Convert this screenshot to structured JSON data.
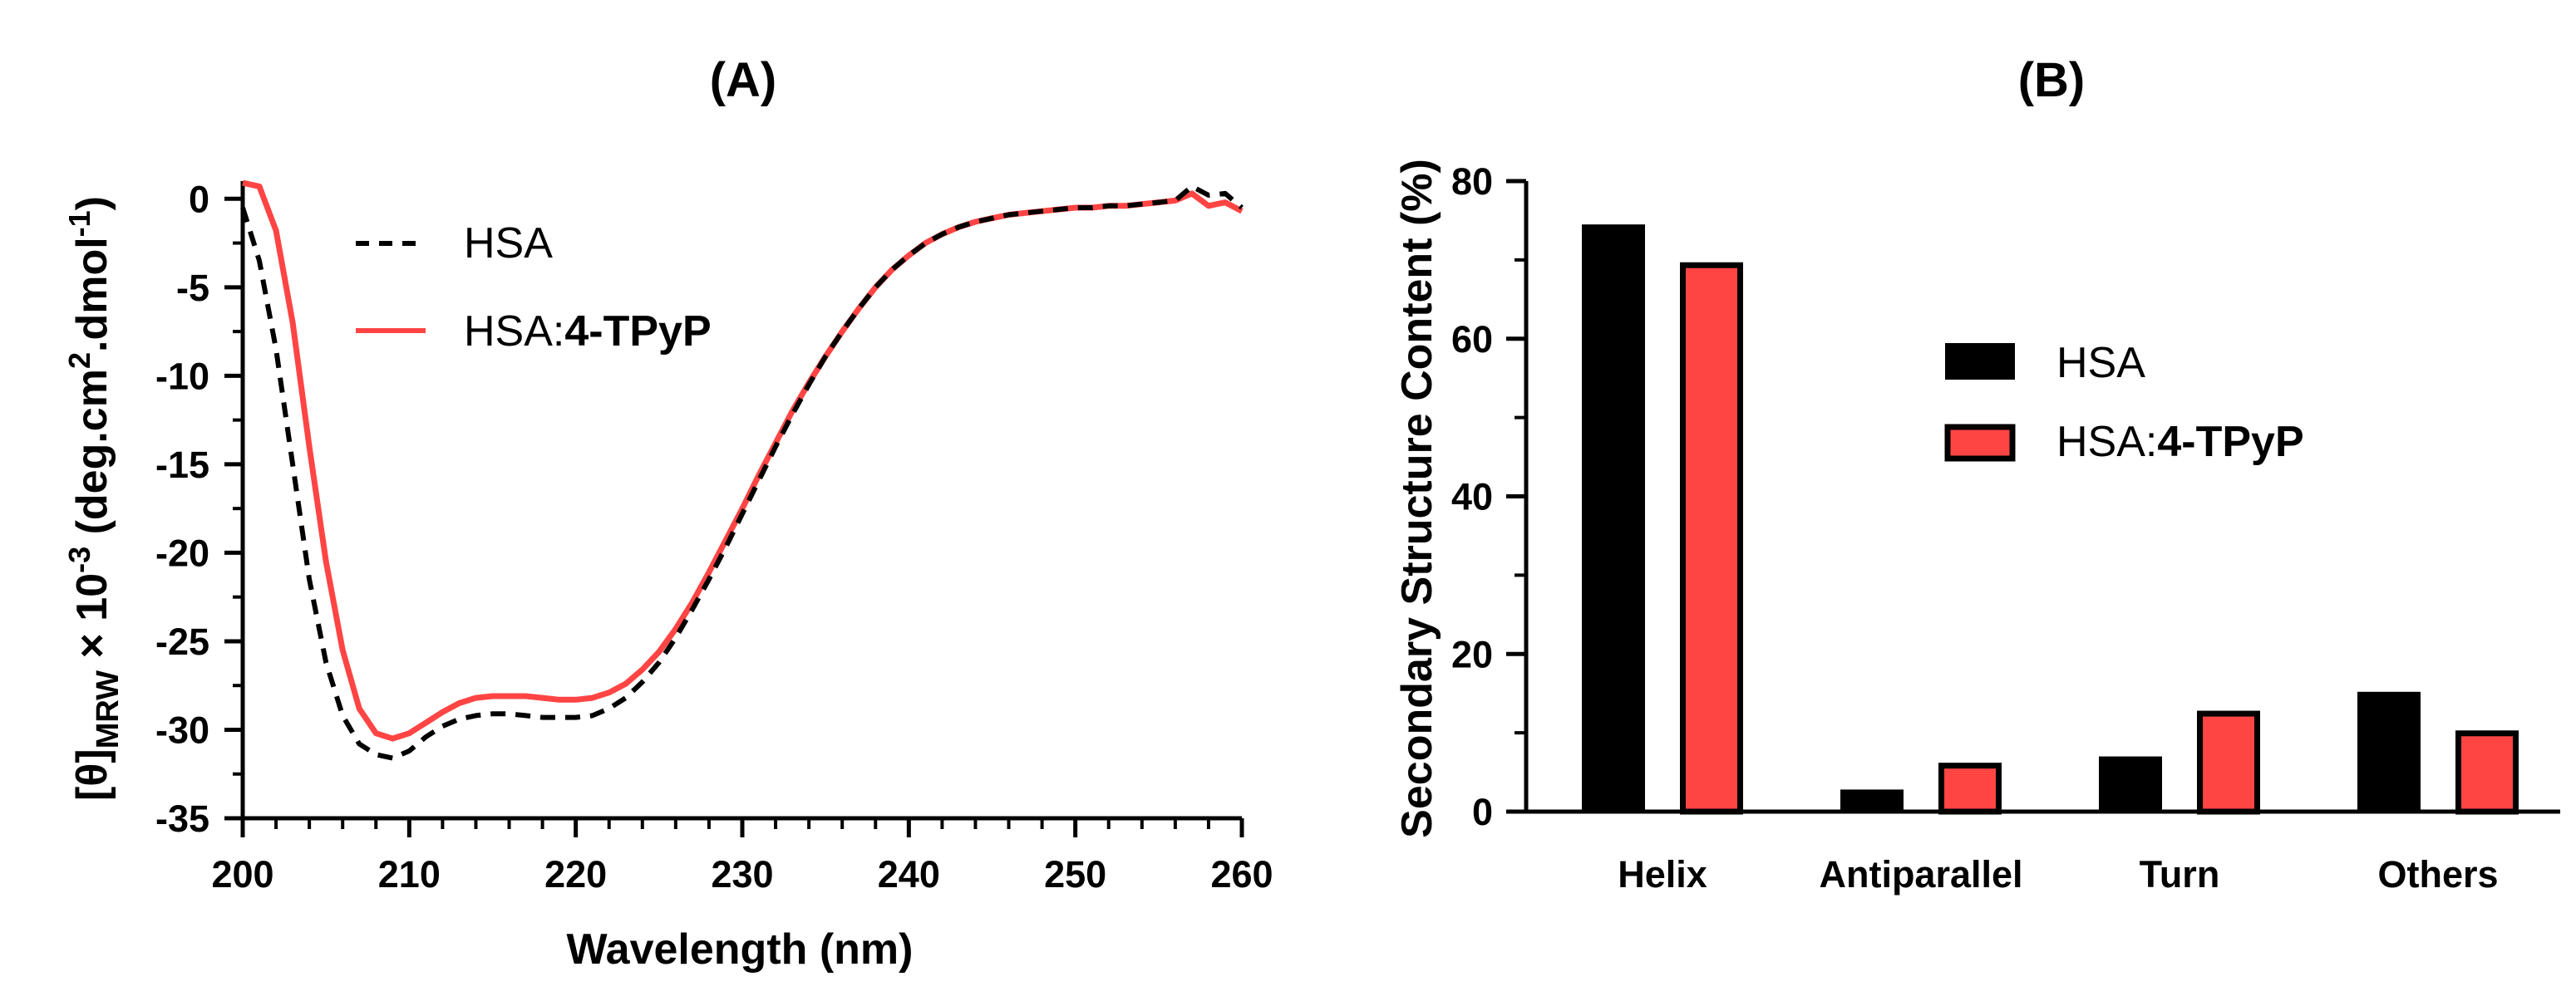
{
  "chart_data": [
    {
      "type": "line",
      "panel": "(A)",
      "xlabel": "Wavelength (nm)",
      "ylabel": {
        "theta": "[θ]",
        "sub": "MRW",
        "times": " × 10",
        "exp": "-3",
        "units_a": " (deg.cm",
        "units_exp1": "2",
        "units_b": ".dmol",
        "units_exp2": "-1",
        "units_c": ")"
      },
      "xlim": [
        200,
        260
      ],
      "ylim": [
        -35,
        1
      ],
      "xticks": [
        200,
        210,
        220,
        230,
        240,
        250,
        260
      ],
      "yticks": [
        0,
        -5,
        -10,
        -15,
        -20,
        -25,
        -30,
        -35
      ],
      "series": [
        {
          "name": "HSA",
          "legend_label": "HSA",
          "color": "#000000",
          "style": "dashed",
          "x": [
            200,
            201,
            202,
            203,
            204,
            205,
            206,
            207,
            208,
            209,
            210,
            211,
            212,
            213,
            214,
            215,
            216,
            217,
            218,
            219,
            220,
            221,
            222,
            223,
            224,
            225,
            226,
            227,
            228,
            229,
            230,
            231,
            232,
            233,
            234,
            235,
            236,
            237,
            238,
            239,
            240,
            241,
            242,
            243,
            244,
            245,
            246,
            247,
            248,
            249,
            250,
            251,
            252,
            253,
            254,
            255,
            256,
            257,
            258,
            259,
            260
          ],
          "values": [
            -0.5,
            -3.5,
            -8.5,
            -15,
            -21.5,
            -26.2,
            -29.2,
            -30.8,
            -31.4,
            -31.6,
            -31.2,
            -30.4,
            -29.8,
            -29.4,
            -29.2,
            -29.1,
            -29.1,
            -29.2,
            -29.3,
            -29.3,
            -29.3,
            -29.2,
            -28.8,
            -28.2,
            -27.3,
            -26.2,
            -24.8,
            -23.2,
            -21.5,
            -19.7,
            -17.8,
            -15.9,
            -14,
            -12.2,
            -10.5,
            -8.9,
            -7.5,
            -6.2,
            -5,
            -4,
            -3.2,
            -2.5,
            -2,
            -1.6,
            -1.3,
            -1.1,
            -0.9,
            -0.8,
            -0.7,
            -0.6,
            -0.5,
            -0.5,
            -0.4,
            -0.4,
            -0.3,
            -0.2,
            -0.1,
            0.7,
            0.2,
            0.3,
            -0.5
          ]
        },
        {
          "name": "HSA:4-TPyP",
          "legend_label": "HSA:",
          "legend_label_bold": "4-TPyP",
          "color": "#ff4444",
          "style": "solid",
          "x": [
            200,
            201,
            202,
            203,
            204,
            205,
            206,
            207,
            208,
            209,
            210,
            211,
            212,
            213,
            214,
            215,
            216,
            217,
            218,
            219,
            220,
            221,
            222,
            223,
            224,
            225,
            226,
            227,
            228,
            229,
            230,
            231,
            232,
            233,
            234,
            235,
            236,
            237,
            238,
            239,
            240,
            241,
            242,
            243,
            244,
            245,
            246,
            247,
            248,
            249,
            250,
            251,
            252,
            253,
            254,
            255,
            256,
            257,
            258,
            259,
            260
          ],
          "values": [
            0.9,
            0.7,
            -1.8,
            -7,
            -14,
            -20.5,
            -25.5,
            -28.8,
            -30.2,
            -30.5,
            -30.2,
            -29.6,
            -29,
            -28.5,
            -28.2,
            -28.1,
            -28.1,
            -28.1,
            -28.2,
            -28.3,
            -28.3,
            -28.2,
            -27.9,
            -27.4,
            -26.6,
            -25.6,
            -24.3,
            -22.8,
            -21.1,
            -19.3,
            -17.5,
            -15.6,
            -13.8,
            -12,
            -10.4,
            -8.9,
            -7.5,
            -6.2,
            -5,
            -4,
            -3.2,
            -2.5,
            -2,
            -1.6,
            -1.3,
            -1.1,
            -0.9,
            -0.8,
            -0.7,
            -0.6,
            -0.5,
            -0.5,
            -0.4,
            -0.4,
            -0.3,
            -0.2,
            -0.1,
            0.3,
            -0.4,
            -0.2,
            -0.7
          ]
        }
      ]
    },
    {
      "type": "bar",
      "panel": "(B)",
      "ylabel": "Secondary Structure Content (%)",
      "xlabel": "",
      "categories": [
        "Helix",
        "Antiparallel",
        "Turn",
        "Others"
      ],
      "ylim": [
        0,
        80
      ],
      "yticks": [
        0,
        20,
        40,
        60,
        80
      ],
      "series": [
        {
          "name": "HSA",
          "legend_label": "HSA",
          "color": "#000000",
          "values": [
            74.5,
            2.8,
            7.0,
            15.2
          ]
        },
        {
          "name": "HSA:4-TPyP",
          "legend_label": "HSA:",
          "legend_label_bold": "4-TPyP",
          "color": "#ff4444",
          "values": [
            69.7,
            6.2,
            12.8,
            10.3
          ]
        }
      ]
    }
  ]
}
